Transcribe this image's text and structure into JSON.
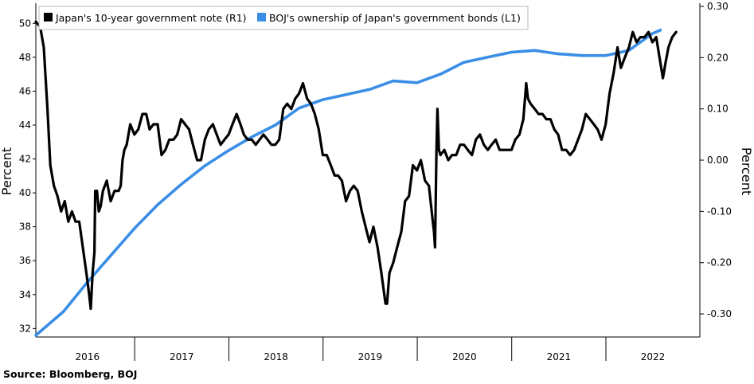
{
  "source": "Source: Bloomberg, BOJ",
  "chart_data": {
    "type": "line",
    "x_axis": {
      "type": "date",
      "range": [
        "2015-12-15",
        "2022-12-31"
      ],
      "tick_labels": [
        "2016",
        "2017",
        "2018",
        "2019",
        "2020",
        "2021",
        "2022"
      ]
    },
    "y_left": {
      "label": "Percent",
      "range": [
        31.5,
        51
      ],
      "ticks": [
        "32",
        "34",
        "36",
        "38",
        "40",
        "42",
        "44",
        "46",
        "48",
        "50"
      ],
      "grid": false
    },
    "y_right": {
      "label": "Percent",
      "range": [
        -0.345,
        0.3
      ],
      "ticks": [
        "0.30",
        "0.20",
        "0.10",
        "0.00",
        "-0.10",
        "-0.20",
        "-0.30"
      ],
      "grid": false
    },
    "legend": {
      "placement": "top-left"
    },
    "series": [
      {
        "name": "Japan's 10-year government note (R1)",
        "axis": "right",
        "color": "#000000",
        "points": [
          [
            "2015-12-15",
            0.27
          ],
          [
            "2016-01-01",
            0.26
          ],
          [
            "2016-01-15",
            0.22
          ],
          [
            "2016-01-29",
            0.1
          ],
          [
            "2016-02-09",
            -0.01
          ],
          [
            "2016-02-23",
            -0.05
          ],
          [
            "2016-03-08",
            -0.07
          ],
          [
            "2016-03-22",
            -0.1
          ],
          [
            "2016-04-05",
            -0.08
          ],
          [
            "2016-04-19",
            -0.12
          ],
          [
            "2016-05-03",
            -0.1
          ],
          [
            "2016-05-17",
            -0.12
          ],
          [
            "2016-05-31",
            -0.12
          ],
          [
            "2016-06-14",
            -0.17
          ],
          [
            "2016-06-28",
            -0.22
          ],
          [
            "2016-07-08",
            -0.26
          ],
          [
            "2016-07-15",
            -0.29
          ],
          [
            "2016-07-22",
            -0.22
          ],
          [
            "2016-07-29",
            -0.18
          ],
          [
            "2016-08-01",
            -0.06
          ],
          [
            "2016-08-08",
            -0.06
          ],
          [
            "2016-08-15",
            -0.1
          ],
          [
            "2016-08-22",
            -0.09
          ],
          [
            "2016-08-31",
            -0.06
          ],
          [
            "2016-09-15",
            -0.04
          ],
          [
            "2016-09-30",
            -0.08
          ],
          [
            "2016-10-15",
            -0.06
          ],
          [
            "2016-10-31",
            -0.06
          ],
          [
            "2016-11-08",
            -0.05
          ],
          [
            "2016-11-15",
            0.0
          ],
          [
            "2016-11-22",
            0.02
          ],
          [
            "2016-12-01",
            0.03
          ],
          [
            "2016-12-15",
            0.07
          ],
          [
            "2016-12-31",
            0.05
          ],
          [
            "2017-01-15",
            0.06
          ],
          [
            "2017-01-31",
            0.09
          ],
          [
            "2017-02-15",
            0.09
          ],
          [
            "2017-02-28",
            0.06
          ],
          [
            "2017-03-15",
            0.07
          ],
          [
            "2017-03-31",
            0.07
          ],
          [
            "2017-04-15",
            0.01
          ],
          [
            "2017-04-30",
            0.02
          ],
          [
            "2017-05-15",
            0.04
          ],
          [
            "2017-05-31",
            0.04
          ],
          [
            "2017-06-15",
            0.05
          ],
          [
            "2017-06-30",
            0.08
          ],
          [
            "2017-07-15",
            0.07
          ],
          [
            "2017-07-31",
            0.06
          ],
          [
            "2017-08-15",
            0.03
          ],
          [
            "2017-08-31",
            0.0
          ],
          [
            "2017-09-15",
            0.0
          ],
          [
            "2017-09-30",
            0.04
          ],
          [
            "2017-10-15",
            0.06
          ],
          [
            "2017-10-31",
            0.07
          ],
          [
            "2017-11-15",
            0.05
          ],
          [
            "2017-11-30",
            0.03
          ],
          [
            "2017-12-15",
            0.04
          ],
          [
            "2017-12-31",
            0.05
          ],
          [
            "2018-01-15",
            0.07
          ],
          [
            "2018-01-31",
            0.09
          ],
          [
            "2018-02-15",
            0.07
          ],
          [
            "2018-02-28",
            0.05
          ],
          [
            "2018-03-15",
            0.04
          ],
          [
            "2018-03-31",
            0.04
          ],
          [
            "2018-04-15",
            0.03
          ],
          [
            "2018-04-30",
            0.04
          ],
          [
            "2018-05-15",
            0.05
          ],
          [
            "2018-05-31",
            0.04
          ],
          [
            "2018-06-15",
            0.03
          ],
          [
            "2018-06-30",
            0.03
          ],
          [
            "2018-07-15",
            0.04
          ],
          [
            "2018-07-31",
            0.1
          ],
          [
            "2018-08-15",
            0.11
          ],
          [
            "2018-08-31",
            0.1
          ],
          [
            "2018-09-15",
            0.12
          ],
          [
            "2018-09-30",
            0.13
          ],
          [
            "2018-10-15",
            0.15
          ],
          [
            "2018-10-31",
            0.12
          ],
          [
            "2018-11-15",
            0.11
          ],
          [
            "2018-11-30",
            0.09
          ],
          [
            "2018-12-15",
            0.06
          ],
          [
            "2018-12-31",
            0.01
          ],
          [
            "2019-01-15",
            0.01
          ],
          [
            "2019-01-31",
            -0.01
          ],
          [
            "2019-02-15",
            -0.03
          ],
          [
            "2019-02-28",
            -0.03
          ],
          [
            "2019-03-15",
            -0.04
          ],
          [
            "2019-03-31",
            -0.08
          ],
          [
            "2019-04-15",
            -0.06
          ],
          [
            "2019-04-30",
            -0.05
          ],
          [
            "2019-05-15",
            -0.06
          ],
          [
            "2019-05-31",
            -0.1
          ],
          [
            "2019-06-15",
            -0.13
          ],
          [
            "2019-06-30",
            -0.16
          ],
          [
            "2019-07-15",
            -0.13
          ],
          [
            "2019-07-31",
            -0.17
          ],
          [
            "2019-08-15",
            -0.22
          ],
          [
            "2019-08-31",
            -0.28
          ],
          [
            "2019-09-06",
            -0.28
          ],
          [
            "2019-09-15",
            -0.22
          ],
          [
            "2019-09-30",
            -0.2
          ],
          [
            "2019-10-15",
            -0.17
          ],
          [
            "2019-10-31",
            -0.14
          ],
          [
            "2019-11-15",
            -0.08
          ],
          [
            "2019-11-30",
            -0.07
          ],
          [
            "2019-12-15",
            -0.01
          ],
          [
            "2019-12-31",
            -0.02
          ],
          [
            "2020-01-15",
            0.0
          ],
          [
            "2020-01-31",
            -0.04
          ],
          [
            "2020-02-15",
            -0.05
          ],
          [
            "2020-02-28",
            -0.11
          ],
          [
            "2020-03-06",
            -0.14
          ],
          [
            "2020-03-10",
            -0.17
          ],
          [
            "2020-03-15",
            0.01
          ],
          [
            "2020-03-19",
            0.1
          ],
          [
            "2020-03-25",
            0.02
          ],
          [
            "2020-03-31",
            0.01
          ],
          [
            "2020-04-15",
            0.02
          ],
          [
            "2020-04-30",
            0.0
          ],
          [
            "2020-05-15",
            0.01
          ],
          [
            "2020-05-31",
            0.01
          ],
          [
            "2020-06-15",
            0.03
          ],
          [
            "2020-06-30",
            0.03
          ],
          [
            "2020-07-15",
            0.02
          ],
          [
            "2020-07-31",
            0.01
          ],
          [
            "2020-08-15",
            0.04
          ],
          [
            "2020-08-31",
            0.05
          ],
          [
            "2020-09-15",
            0.03
          ],
          [
            "2020-09-30",
            0.02
          ],
          [
            "2020-10-15",
            0.03
          ],
          [
            "2020-10-31",
            0.04
          ],
          [
            "2020-11-15",
            0.02
          ],
          [
            "2020-11-30",
            0.02
          ],
          [
            "2020-12-15",
            0.02
          ],
          [
            "2020-12-31",
            0.02
          ],
          [
            "2021-01-15",
            0.04
          ],
          [
            "2021-01-31",
            0.05
          ],
          [
            "2021-02-15",
            0.08
          ],
          [
            "2021-02-26",
            0.15
          ],
          [
            "2021-03-05",
            0.12
          ],
          [
            "2021-03-15",
            0.11
          ],
          [
            "2021-03-31",
            0.1
          ],
          [
            "2021-04-15",
            0.09
          ],
          [
            "2021-04-30",
            0.09
          ],
          [
            "2021-05-15",
            0.08
          ],
          [
            "2021-05-31",
            0.08
          ],
          [
            "2021-06-15",
            0.06
          ],
          [
            "2021-06-30",
            0.05
          ],
          [
            "2021-07-15",
            0.02
          ],
          [
            "2021-07-31",
            0.02
          ],
          [
            "2021-08-15",
            0.01
          ],
          [
            "2021-08-31",
            0.02
          ],
          [
            "2021-09-15",
            0.04
          ],
          [
            "2021-09-30",
            0.06
          ],
          [
            "2021-10-15",
            0.09
          ],
          [
            "2021-10-31",
            0.08
          ],
          [
            "2021-11-15",
            0.07
          ],
          [
            "2021-11-30",
            0.06
          ],
          [
            "2021-12-15",
            0.04
          ],
          [
            "2021-12-31",
            0.07
          ],
          [
            "2022-01-15",
            0.13
          ],
          [
            "2022-01-31",
            0.17
          ],
          [
            "2022-02-15",
            0.22
          ],
          [
            "2022-02-28",
            0.18
          ],
          [
            "2022-03-15",
            0.2
          ],
          [
            "2022-03-31",
            0.22
          ],
          [
            "2022-04-15",
            0.25
          ],
          [
            "2022-04-30",
            0.23
          ],
          [
            "2022-05-15",
            0.24
          ],
          [
            "2022-05-31",
            0.24
          ],
          [
            "2022-06-15",
            0.25
          ],
          [
            "2022-06-30",
            0.23
          ],
          [
            "2022-07-15",
            0.24
          ],
          [
            "2022-07-31",
            0.19
          ],
          [
            "2022-08-10",
            0.16
          ],
          [
            "2022-08-20",
            0.19
          ],
          [
            "2022-08-31",
            0.22
          ],
          [
            "2022-09-15",
            0.24
          ],
          [
            "2022-09-30",
            0.25
          ]
        ]
      },
      {
        "name": "BOJ's ownership of Japan's government bonds (L1)",
        "axis": "left",
        "color": "#3a8ee6",
        "points": [
          [
            "2015-12-15",
            31.6
          ],
          [
            "2016-03-31",
            33.0
          ],
          [
            "2016-06-30",
            34.7
          ],
          [
            "2016-09-30",
            36.3
          ],
          [
            "2016-12-31",
            37.9
          ],
          [
            "2017-03-31",
            39.3
          ],
          [
            "2017-06-30",
            40.5
          ],
          [
            "2017-09-30",
            41.6
          ],
          [
            "2017-12-31",
            42.5
          ],
          [
            "2018-03-31",
            43.3
          ],
          [
            "2018-06-30",
            44.0
          ],
          [
            "2018-09-30",
            45.0
          ],
          [
            "2018-12-31",
            45.5
          ],
          [
            "2019-03-31",
            45.8
          ],
          [
            "2019-06-30",
            46.1
          ],
          [
            "2019-09-30",
            46.6
          ],
          [
            "2019-12-31",
            46.5
          ],
          [
            "2020-03-31",
            47.0
          ],
          [
            "2020-06-30",
            47.7
          ],
          [
            "2020-09-30",
            48.0
          ],
          [
            "2020-12-31",
            48.3
          ],
          [
            "2021-03-31",
            48.4
          ],
          [
            "2021-06-30",
            48.2
          ],
          [
            "2021-09-30",
            48.1
          ],
          [
            "2021-12-31",
            48.1
          ],
          [
            "2022-03-31",
            48.4
          ],
          [
            "2022-06-30",
            49.4
          ],
          [
            "2022-07-31",
            49.6
          ]
        ]
      }
    ]
  }
}
